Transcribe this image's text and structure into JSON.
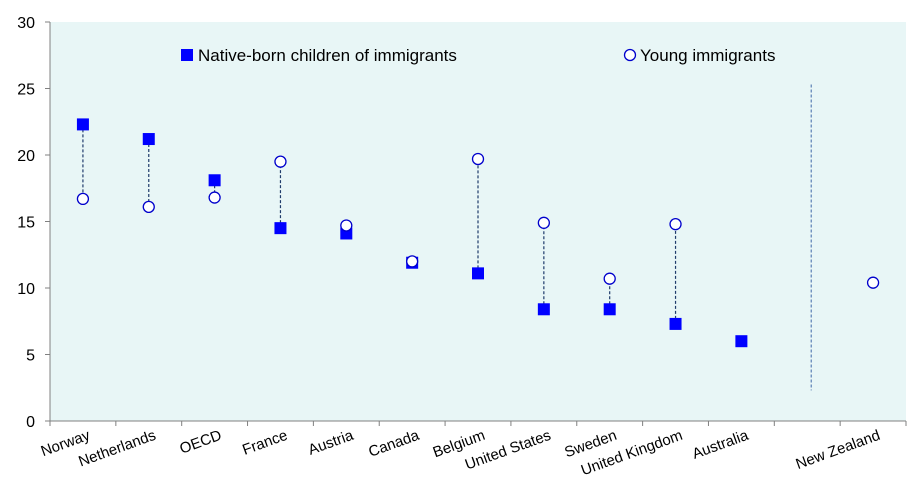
{
  "chart_data": {
    "type": "scatter",
    "title": "",
    "xlabel": "",
    "ylabel": "",
    "ylim": [
      0,
      30
    ],
    "yticks": [
      "0",
      "5",
      "10",
      "15",
      "20",
      "25",
      "30"
    ],
    "grid": false,
    "legend_position": "top",
    "background_color": "#e8f6f6",
    "categories": [
      "Norway",
      "Netherlands",
      "OECD",
      "France",
      "Austria",
      "Canada",
      "Belgium",
      "United States",
      "Sweden",
      "United Kingdom",
      "Australia",
      "",
      "New Zealand"
    ],
    "series": [
      {
        "name": "Native-born children of immigrants",
        "marker": "filled-square",
        "color": "#0000ff",
        "values": [
          22.3,
          21.2,
          18.1,
          14.5,
          14.1,
          11.9,
          11.1,
          8.4,
          8.4,
          7.3,
          6.0,
          null,
          null
        ]
      },
      {
        "name": "Young immigrants",
        "marker": "hollow-circle",
        "color": "#0000cc",
        "values": [
          16.7,
          16.1,
          16.8,
          19.5,
          14.7,
          12.0,
          19.7,
          14.9,
          10.7,
          14.8,
          null,
          null,
          10.4
        ]
      }
    ],
    "connector_style": "dashed",
    "separator_before": "New Zealand"
  }
}
